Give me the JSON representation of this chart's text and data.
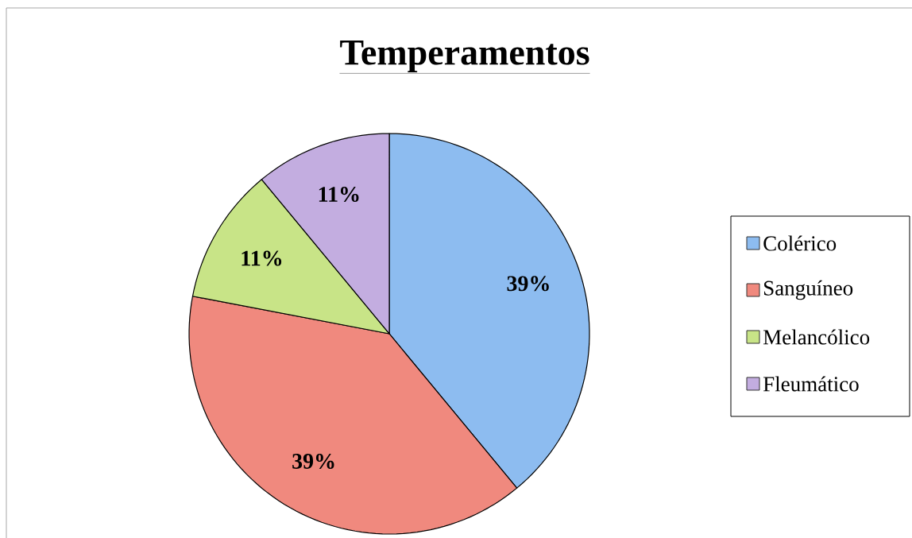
{
  "chart_data": {
    "type": "pie",
    "title": "Temperamentos",
    "categories": [
      "Colérico",
      "Sanguíneo",
      "Melancólico",
      "Fleumático"
    ],
    "values": [
      39,
      39,
      11,
      11
    ],
    "colors": [
      "#8dbcf0",
      "#f0897e",
      "#c8e487",
      "#c3ade0"
    ],
    "value_labels": [
      "39%",
      "39%",
      "11%",
      "11%"
    ],
    "legend": "right"
  }
}
